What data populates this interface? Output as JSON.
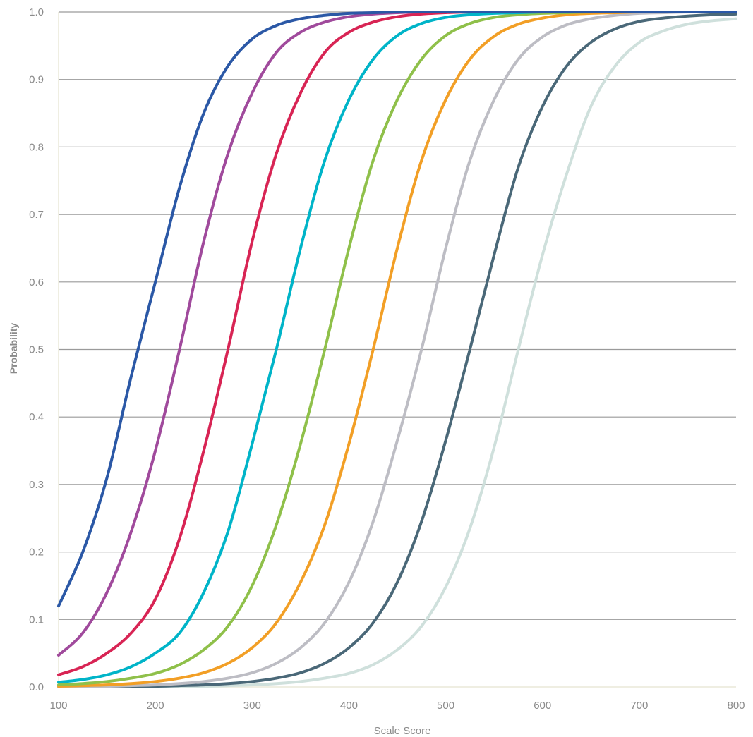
{
  "chart_data": {
    "type": "line",
    "title": "",
    "xlabel": "Scale Score",
    "ylabel": "Probability",
    "xlim": [
      100,
      800
    ],
    "ylim": [
      0,
      1
    ],
    "grid": true,
    "x_ticks": [
      "100",
      "200",
      "300",
      "400",
      "500",
      "600",
      "700",
      "800"
    ],
    "y_ticks": [
      "0.0",
      "0.1",
      "0.2",
      "0.3",
      "0.4",
      "0.5",
      "0.6",
      "0.7",
      "0.8",
      "0.9",
      "1.0"
    ],
    "x": [
      100,
      125,
      150,
      175,
      200,
      225,
      250,
      275,
      300,
      325,
      350,
      375,
      400,
      425,
      450,
      475,
      500,
      525,
      550,
      575,
      600,
      625,
      650,
      675,
      700,
      725,
      750,
      775,
      800
    ],
    "series": [
      {
        "color": "#2b58a6",
        "values": [
          0.12,
          0.2,
          0.31,
          0.46,
          0.6,
          0.74,
          0.85,
          0.92,
          0.96,
          0.98,
          0.99,
          0.995,
          0.998,
          0.999,
          1.0,
          1.0,
          1.0,
          1.0,
          1.0,
          1.0,
          1.0,
          1.0,
          1.0,
          1.0,
          1.0,
          1.0,
          1.0,
          1.0,
          1.0
        ]
      },
      {
        "color": "#a04a9c",
        "values": [
          0.047,
          0.08,
          0.14,
          0.23,
          0.35,
          0.5,
          0.66,
          0.79,
          0.88,
          0.94,
          0.97,
          0.985,
          0.993,
          0.997,
          0.999,
          1.0,
          1.0,
          1.0,
          1.0,
          1.0,
          1.0,
          1.0,
          1.0,
          1.0,
          1.0,
          1.0,
          1.0,
          1.0,
          1.0
        ]
      },
      {
        "color": "#d82454",
        "values": [
          0.018,
          0.03,
          0.05,
          0.08,
          0.13,
          0.22,
          0.35,
          0.5,
          0.66,
          0.79,
          0.88,
          0.94,
          0.97,
          0.985,
          0.993,
          0.997,
          0.999,
          1.0,
          1.0,
          1.0,
          1.0,
          1.0,
          1.0,
          1.0,
          1.0,
          1.0,
          1.0,
          1.0,
          1.0
        ]
      },
      {
        "color": "#00b4c8",
        "values": [
          0.007,
          0.011,
          0.018,
          0.03,
          0.05,
          0.08,
          0.14,
          0.23,
          0.36,
          0.5,
          0.65,
          0.78,
          0.87,
          0.93,
          0.965,
          0.983,
          0.992,
          0.996,
          0.998,
          0.999,
          1.0,
          1.0,
          1.0,
          1.0,
          1.0,
          1.0,
          1.0,
          1.0,
          1.0
        ]
      },
      {
        "color": "#8fc04a",
        "values": [
          0.003,
          0.005,
          0.008,
          0.013,
          0.02,
          0.033,
          0.055,
          0.09,
          0.15,
          0.24,
          0.36,
          0.5,
          0.65,
          0.78,
          0.87,
          0.93,
          0.965,
          0.983,
          0.992,
          0.996,
          0.998,
          0.999,
          1.0,
          1.0,
          1.0,
          1.0,
          1.0,
          1.0,
          1.0
        ]
      },
      {
        "color": "#f29f26",
        "values": [
          0.001,
          0.002,
          0.003,
          0.005,
          0.008,
          0.013,
          0.021,
          0.035,
          0.058,
          0.095,
          0.155,
          0.24,
          0.36,
          0.5,
          0.65,
          0.78,
          0.87,
          0.93,
          0.964,
          0.982,
          0.991,
          0.996,
          0.998,
          0.999,
          1.0,
          1.0,
          1.0,
          1.0,
          1.0
        ]
      },
      {
        "color": "#bdbdc4",
        "values": [
          0.0,
          0.001,
          0.001,
          0.002,
          0.003,
          0.005,
          0.008,
          0.013,
          0.021,
          0.035,
          0.058,
          0.095,
          0.155,
          0.245,
          0.365,
          0.5,
          0.65,
          0.78,
          0.87,
          0.93,
          0.963,
          0.981,
          0.99,
          0.995,
          0.998,
          0.999,
          1.0,
          1.0,
          1.0
        ]
      },
      {
        "color": "#4a6878",
        "values": [
          0.0,
          0.0,
          0.0,
          0.001,
          0.001,
          0.002,
          0.003,
          0.005,
          0.008,
          0.013,
          0.021,
          0.035,
          0.058,
          0.095,
          0.155,
          0.245,
          0.365,
          0.5,
          0.64,
          0.77,
          0.86,
          0.92,
          0.955,
          0.975,
          0.986,
          0.991,
          0.994,
          0.996,
          0.997
        ]
      },
      {
        "color": "#cfe0dc",
        "values": [
          0.0,
          0.0,
          0.0,
          0.0,
          0.0,
          0.001,
          0.001,
          0.002,
          0.003,
          0.005,
          0.008,
          0.013,
          0.02,
          0.033,
          0.055,
          0.09,
          0.148,
          0.235,
          0.355,
          0.5,
          0.64,
          0.76,
          0.86,
          0.92,
          0.955,
          0.972,
          0.982,
          0.987,
          0.99
        ]
      }
    ]
  }
}
